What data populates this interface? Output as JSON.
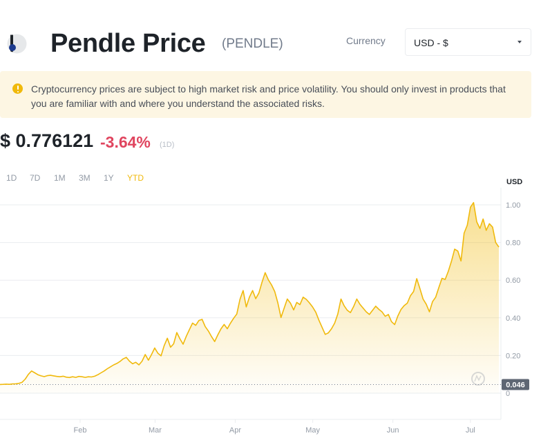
{
  "header": {
    "title": "Pendle Price",
    "ticker": "(PENDLE)",
    "currency_label": "Currency",
    "currency_value": "USD - $"
  },
  "warning": {
    "text": "Cryptocurrency prices are subject to high market risk and price volatility. You should only invest in products that you are familiar with and where you understand the associated risks."
  },
  "price": {
    "value": "$ 0.776121",
    "change": "-3.64%",
    "period": "(1D)"
  },
  "ranges": [
    "1D",
    "7D",
    "1M",
    "3M",
    "1Y",
    "YTD"
  ],
  "active_range": "YTD",
  "colors": {
    "accent": "#f0b90b",
    "line": "#f0b90b",
    "negative": "#e0455f",
    "warning_bg": "#fdf6e3"
  },
  "icons": {
    "logo": "pendle-logo-icon",
    "warning": "warning-icon",
    "caret": "chevron-down-icon",
    "watermark": "watermark-logo-icon"
  },
  "chart_data": {
    "type": "area",
    "unit_label": "USD",
    "y_ticks": [
      "1.00",
      "0.80",
      "0.60",
      "0.40",
      "0.20",
      "0"
    ],
    "ylim": [
      -0.15,
      1.07
    ],
    "x_ticks": [
      "Feb",
      "Mar",
      "Apr",
      "May",
      "Jun",
      "Jul"
    ],
    "baseline_value": 0.046,
    "baseline_label": "0.046",
    "grid": true,
    "series": [
      {
        "values": [
          0.046,
          0.047,
          0.048,
          0.047,
          0.049,
          0.05,
          0.052,
          0.058,
          0.075,
          0.1,
          0.118,
          0.108,
          0.098,
          0.092,
          0.088,
          0.093,
          0.095,
          0.092,
          0.089,
          0.087,
          0.09,
          0.085,
          0.083,
          0.087,
          0.084,
          0.089,
          0.087,
          0.084,
          0.087,
          0.086,
          0.09,
          0.098,
          0.108,
          0.118,
          0.13,
          0.14,
          0.15,
          0.158,
          0.168,
          0.182,
          0.19,
          0.17,
          0.156,
          0.164,
          0.15,
          0.17,
          0.205,
          0.175,
          0.205,
          0.24,
          0.212,
          0.198,
          0.252,
          0.292,
          0.244,
          0.262,
          0.322,
          0.288,
          0.26,
          0.302,
          0.338,
          0.372,
          0.36,
          0.386,
          0.392,
          0.354,
          0.33,
          0.3,
          0.274,
          0.31,
          0.342,
          0.365,
          0.342,
          0.372,
          0.398,
          0.42,
          0.498,
          0.545,
          0.458,
          0.51,
          0.545,
          0.502,
          0.532,
          0.59,
          0.64,
          0.602,
          0.575,
          0.54,
          0.48,
          0.402,
          0.452,
          0.5,
          0.478,
          0.442,
          0.482,
          0.47,
          0.51,
          0.498,
          0.48,
          0.458,
          0.43,
          0.388,
          0.35,
          0.312,
          0.32,
          0.342,
          0.372,
          0.42,
          0.5,
          0.464,
          0.44,
          0.428,
          0.46,
          0.5,
          0.472,
          0.452,
          0.432,
          0.418,
          0.44,
          0.462,
          0.445,
          0.432,
          0.408,
          0.418,
          0.38,
          0.364,
          0.41,
          0.444,
          0.465,
          0.478,
          0.518,
          0.54,
          0.608,
          0.555,
          0.5,
          0.472,
          0.432,
          0.486,
          0.51,
          0.562,
          0.61,
          0.604,
          0.648,
          0.702,
          0.765,
          0.755,
          0.702,
          0.85,
          0.892,
          0.988,
          1.012,
          0.91,
          0.875,
          0.925,
          0.865,
          0.9,
          0.882,
          0.8,
          0.776
        ]
      }
    ]
  }
}
